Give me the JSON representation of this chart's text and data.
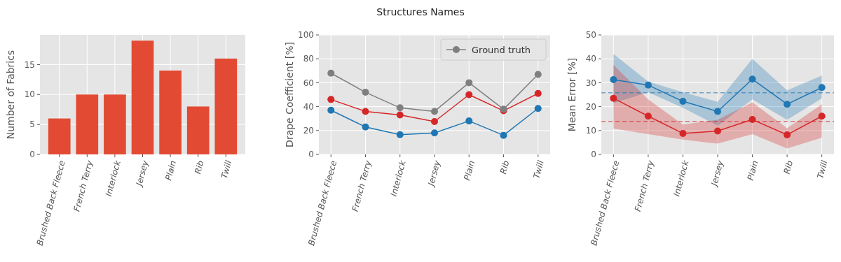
{
  "chart_data": [
    {
      "type": "bar",
      "ylabel": "Number of Fabrics",
      "categories": [
        "Brushed Back Fleece",
        "French Terry",
        "Interlock",
        "Jersey",
        "Plain",
        "Rib",
        "Twill"
      ],
      "values": [
        6,
        10,
        10,
        19,
        14,
        8,
        16
      ],
      "color": "#e24a33",
      "ylim": [
        0,
        19.95
      ],
      "yticks": [
        0,
        5,
        10,
        15
      ],
      "grid": true
    },
    {
      "type": "line",
      "title": "Structures Names",
      "ylabel": "Drape Coefficient [%]",
      "categories": [
        "Brushed Back Fleece",
        "French Terry",
        "Interlock",
        "Jersey",
        "Plain",
        "Rib",
        "Twill"
      ],
      "series": [
        {
          "color": "#1f77b4",
          "values": [
            37,
            23,
            16.5,
            18,
            28,
            16,
            38.5
          ]
        },
        {
          "color": "#d62728",
          "values": [
            46,
            36,
            33,
            27.5,
            50,
            36.5,
            51
          ]
        },
        {
          "name": "Ground truth",
          "color": "#7f7f7f",
          "values": [
            68,
            52,
            39,
            36,
            60,
            37.8,
            67
          ]
        }
      ],
      "ylim": [
        0,
        100
      ],
      "yticks": [
        0,
        20,
        40,
        60,
        80,
        100
      ],
      "grid": true,
      "marker": "circle",
      "legend": "top right"
    },
    {
      "type": "line",
      "ylabel": "Mean Error [%]",
      "categories": [
        "Brushed Back Fleece",
        "French Terry",
        "Interlock",
        "Jersey",
        "Plain",
        "Rib",
        "Twill"
      ],
      "series": [
        {
          "color": "#1f77b4",
          "values": [
            31.3,
            29,
            22.2,
            18,
            31.5,
            21,
            28
          ],
          "lower": [
            21.5,
            26,
            19.5,
            12,
            23,
            14.5,
            23.5
          ],
          "upper": [
            42,
            30.5,
            26,
            22,
            40,
            26.8,
            33
          ]
        },
        {
          "color": "#d62728",
          "values": [
            23.5,
            16,
            8.8,
            9.8,
            14.6,
            8.2,
            16
          ],
          "lower": [
            10.8,
            8.5,
            6.2,
            4.5,
            8.5,
            2.5,
            7
          ],
          "upper": [
            37.5,
            23,
            12.5,
            14.5,
            21.8,
            11,
            21
          ]
        }
      ],
      "ref_lines": [
        {
          "axis": "y",
          "value": 25.8,
          "color": "#1f77b4",
          "line_style": "dashed"
        },
        {
          "axis": "y",
          "value": 13.8,
          "color": "#d62728",
          "line_style": "dashed"
        }
      ],
      "ylim": [
        0,
        50
      ],
      "yticks": [
        0,
        10,
        20,
        30,
        40,
        50
      ],
      "grid": true,
      "marker": "circle"
    }
  ]
}
